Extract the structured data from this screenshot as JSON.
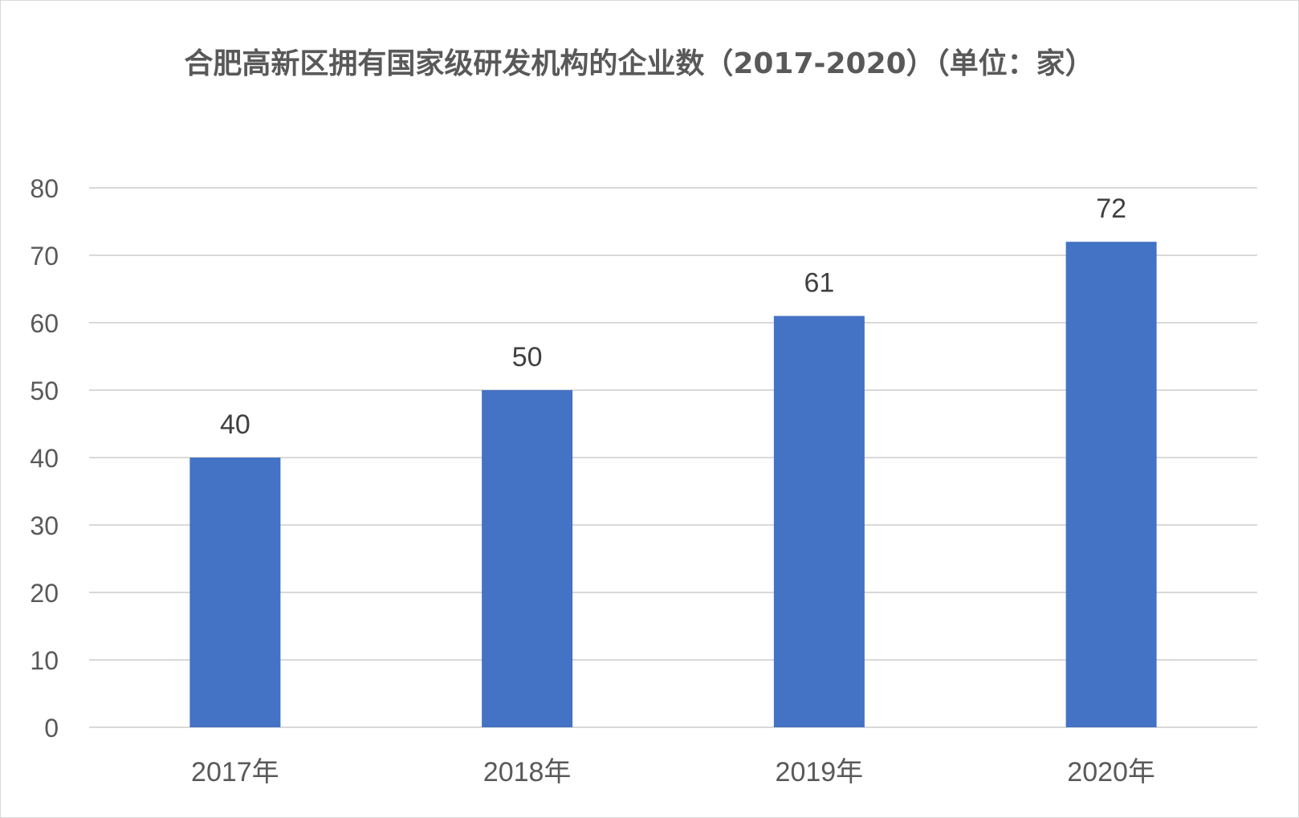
{
  "chart_data": {
    "type": "bar",
    "title": "合肥高新区拥有国家级研发机构的企业数（2017-2020）（单位：家）",
    "categories": [
      "2017年",
      "2018年",
      "2019年",
      "2020年"
    ],
    "values": [
      40,
      50,
      61,
      72
    ],
    "data_labels": [
      "40",
      "50",
      "61",
      "72"
    ],
    "ylim": [
      0,
      80
    ],
    "yticks": [
      "0",
      "10",
      "20",
      "30",
      "40",
      "50",
      "60",
      "70",
      "80"
    ],
    "xlabel": "",
    "ylabel": "",
    "grid": true,
    "legend": "none",
    "bar_color": "#4472C4",
    "grid_color": "#d9d9d9"
  }
}
